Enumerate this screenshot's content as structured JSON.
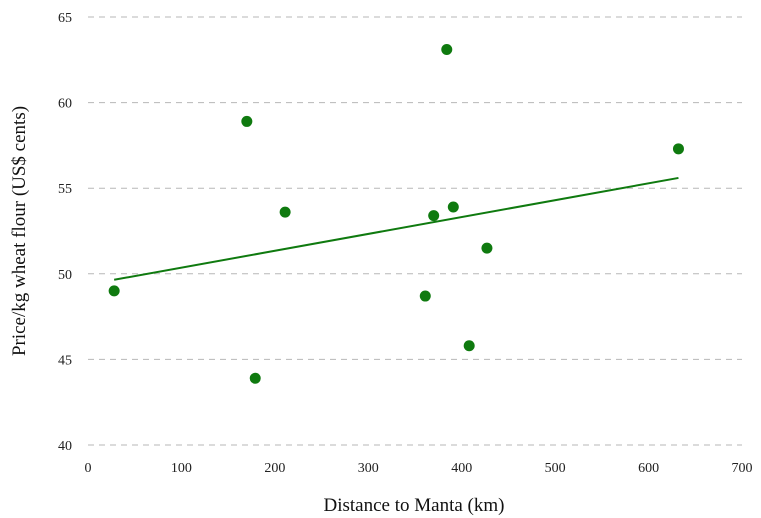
{
  "chart_data": {
    "type": "scatter",
    "title": "",
    "xlabel": "Distance to Manta (km)",
    "ylabel": "Price/kg wheat flour (US$ cents)",
    "xlim": [
      0,
      700
    ],
    "ylim": [
      40,
      65
    ],
    "x_ticks": [
      0,
      100,
      200,
      300,
      400,
      500,
      600,
      700
    ],
    "y_ticks": [
      40,
      45,
      50,
      55,
      60,
      65
    ],
    "grid": "horizontal dashed",
    "legend": "none",
    "colors": {
      "points": "#0f7a0f",
      "trendline": "#0f7a0f",
      "grid": "#b7b7b7"
    },
    "series": [
      {
        "points": [
          {
            "x": 28,
            "y": 49.0
          },
          {
            "x": 170,
            "y": 58.9
          },
          {
            "x": 179,
            "y": 43.9
          },
          {
            "x": 211,
            "y": 53.6
          },
          {
            "x": 361,
            "y": 48.7
          },
          {
            "x": 370,
            "y": 53.4
          },
          {
            "x": 384,
            "y": 63.1
          },
          {
            "x": 391,
            "y": 53.9
          },
          {
            "x": 408,
            "y": 45.8
          },
          {
            "x": 427,
            "y": 51.5
          },
          {
            "x": 632,
            "y": 57.3
          }
        ]
      }
    ],
    "trendline": {
      "type": "linear",
      "points": [
        {
          "x": 28,
          "y": 49.65
        },
        {
          "x": 632,
          "y": 55.6
        }
      ]
    }
  }
}
